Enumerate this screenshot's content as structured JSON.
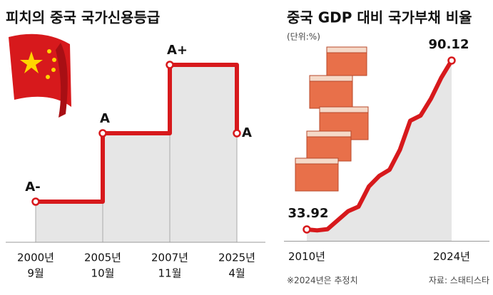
{
  "chart_data": [
    {
      "type": "step",
      "title": "피치의 중국 국가신용등급",
      "categories": [
        [
          "2000년",
          "9월"
        ],
        [
          "2005년",
          "10월"
        ],
        [
          "2007년",
          "11월"
        ],
        [
          "2025년",
          "4월"
        ]
      ],
      "y_categories": [
        "A-",
        "A",
        "A+"
      ],
      "values": [
        "A-",
        "A",
        "A+",
        "A"
      ],
      "color": "#d7191c"
    },
    {
      "type": "area",
      "title": "중국 GDP 대비 국가부채 비율",
      "subtitle": "(단위:%)",
      "x": [
        2010,
        2011,
        2012,
        2013,
        2014,
        2015,
        2016,
        2017,
        2018,
        2019,
        2020,
        2021,
        2022,
        2023,
        2024
      ],
      "values": [
        33.92,
        33.6,
        34.0,
        37.0,
        40.0,
        41.5,
        48.2,
        51.7,
        53.8,
        60.4,
        70.1,
        71.8,
        77.4,
        84.4,
        90.12
      ],
      "xlim": [
        2010,
        2024
      ],
      "xticks": [
        {
          "value": 2010,
          "label": "2010년"
        },
        {
          "value": 2024,
          "label": "2024년"
        }
      ],
      "ylim": [
        30,
        100
      ],
      "color": "#d7191c",
      "note": "※2024년은 추정치",
      "source": "자료: 스태티스타"
    }
  ]
}
